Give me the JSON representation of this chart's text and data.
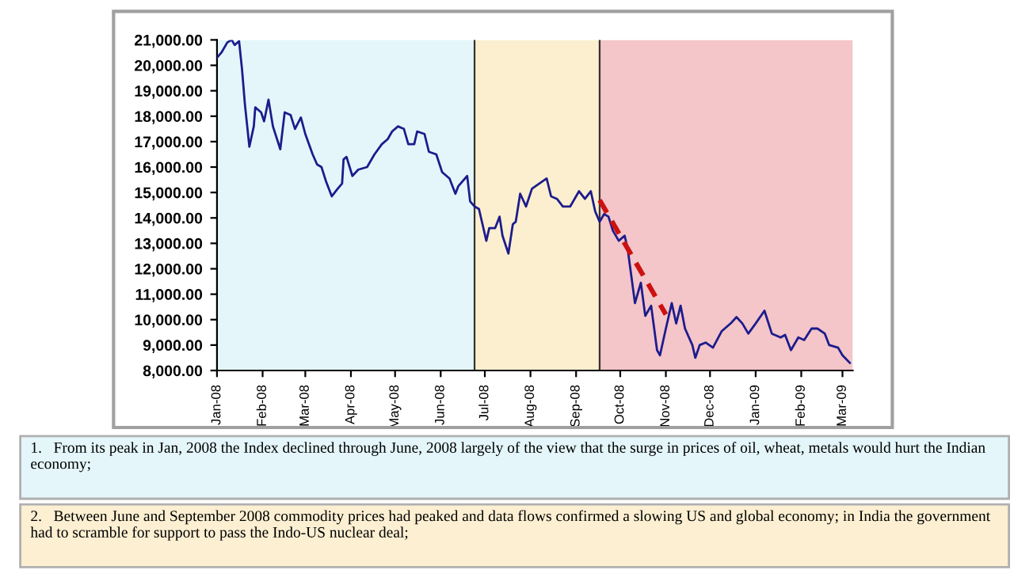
{
  "chart_data": {
    "type": "line",
    "x": [
      "2008-01-01",
      "2008-01-04",
      "2008-01-08",
      "2008-01-11",
      "2008-01-13",
      "2008-01-16",
      "2008-01-18",
      "2008-01-20",
      "2008-01-23",
      "2008-01-26",
      "2008-01-27",
      "2008-01-31",
      "2008-02-02",
      "2008-02-05",
      "2008-02-08",
      "2008-02-13",
      "2008-02-16",
      "2008-02-20",
      "2008-02-23",
      "2008-02-27",
      "2008-03-01",
      "2008-03-06",
      "2008-03-09",
      "2008-03-12",
      "2008-03-15",
      "2008-03-19",
      "2008-03-23",
      "2008-03-26",
      "2008-03-27",
      "2008-03-29",
      "2008-04-02",
      "2008-04-06",
      "2008-04-12",
      "2008-04-17",
      "2008-04-22",
      "2008-04-26",
      "2008-04-29",
      "2008-05-03",
      "2008-05-07",
      "2008-05-10",
      "2008-05-14",
      "2008-05-16",
      "2008-05-21",
      "2008-05-24",
      "2008-05-29",
      "2008-06-02",
      "2008-06-07",
      "2008-06-11",
      "2008-06-13",
      "2008-06-19",
      "2008-06-21",
      "2008-06-24",
      "2008-06-27",
      "2008-07-02",
      "2008-07-04",
      "2008-07-08",
      "2008-07-11",
      "2008-07-13",
      "2008-07-17",
      "2008-07-20",
      "2008-07-22",
      "2008-07-25",
      "2008-07-29",
      "2008-08-02",
      "2008-08-07",
      "2008-08-12",
      "2008-08-15",
      "2008-08-19",
      "2008-08-23",
      "2008-08-28",
      "2008-09-03",
      "2008-09-07",
      "2008-09-11",
      "2008-09-14",
      "2008-09-17",
      "2008-09-20",
      "2008-09-23",
      "2008-09-26",
      "2008-09-30",
      "2008-10-04",
      "2008-10-06",
      "2008-10-11",
      "2008-10-15",
      "2008-10-18",
      "2008-10-22",
      "2008-10-26",
      "2008-10-28",
      "2008-11-01",
      "2008-11-05",
      "2008-11-08",
      "2008-11-11",
      "2008-11-14",
      "2008-11-19",
      "2008-11-21",
      "2008-11-24",
      "2008-11-28",
      "2008-12-03",
      "2008-12-09",
      "2008-12-15",
      "2008-12-19",
      "2008-12-23",
      "2008-12-27",
      "2009-01-01",
      "2009-01-07",
      "2009-01-12",
      "2009-01-18",
      "2009-01-21",
      "2009-01-25",
      "2009-01-30",
      "2009-02-03",
      "2009-02-08",
      "2009-02-12",
      "2009-02-17",
      "2009-02-20",
      "2009-02-26",
      "2009-03-01",
      "2009-03-06"
    ],
    "series": [
      {
        "color": "#1c1c8c",
        "values": [
          20300,
          20500,
          20900,
          21000,
          20800,
          20950,
          19850,
          18450,
          16800,
          17600,
          18350,
          18150,
          17800,
          18650,
          17600,
          16700,
          18150,
          18050,
          17500,
          17950,
          17300,
          16500,
          16100,
          16000,
          15450,
          14850,
          15150,
          15350,
          16300,
          16400,
          15650,
          15900,
          16000,
          16500,
          16900,
          17100,
          17400,
          17600,
          17500,
          16900,
          16900,
          17400,
          17300,
          16600,
          16500,
          15800,
          15550,
          14950,
          15250,
          15650,
          14650,
          14450,
          14350,
          13100,
          13600,
          13600,
          14050,
          13300,
          12600,
          13750,
          13850,
          14950,
          14450,
          15150,
          15350,
          15550,
          14850,
          14750,
          14450,
          14450,
          15050,
          14750,
          15050,
          14250,
          13850,
          14150,
          14050,
          13500,
          13100,
          13300,
          12800,
          10650,
          11450,
          10150,
          10550,
          8800,
          8600,
          9650,
          10650,
          9850,
          10550,
          9650,
          9000,
          8500,
          9000,
          9100,
          8900,
          9550,
          9850,
          10100,
          9850,
          9450,
          9850,
          10350,
          9450,
          9300,
          9400,
          8800,
          9300,
          9200,
          9650,
          9650,
          9450,
          9000,
          8900,
          8600,
          8300
        ]
      },
      {
        "type": "line",
        "x": [
          "2008-09-17",
          "2008-11-01"
        ],
        "values": [
          14700,
          10200
        ],
        "color": "#cc1111",
        "line_style": "dashed"
      }
    ],
    "xlim": [
      "2008-01-01",
      "2009-03-08"
    ],
    "xticks": [
      {
        "value": "2008-01-01",
        "label": "Jan-08"
      },
      {
        "value": "2008-02-01",
        "label": "Feb-08"
      },
      {
        "value": "2008-03-01",
        "label": "Mar-08"
      },
      {
        "value": "2008-04-01",
        "label": "Apr-08"
      },
      {
        "value": "2008-05-01",
        "label": "May-08"
      },
      {
        "value": "2008-06-01",
        "label": "Jun-08"
      },
      {
        "value": "2008-07-01",
        "label": "Jul-08"
      },
      {
        "value": "2008-08-01",
        "label": "Aug-08"
      },
      {
        "value": "2008-09-01",
        "label": "Sep-08"
      },
      {
        "value": "2008-10-01",
        "label": "Oct-08"
      },
      {
        "value": "2008-11-01",
        "label": "Nov-08"
      },
      {
        "value": "2008-12-01",
        "label": "Dec-08"
      },
      {
        "value": "2009-01-01",
        "label": "Jan-09"
      },
      {
        "value": "2009-02-01",
        "label": "Feb-09"
      },
      {
        "value": "2009-03-01",
        "label": "Mar-09"
      }
    ],
    "ylim": [
      8000,
      21000
    ],
    "yticks": [
      {
        "value": 8000,
        "label": "8,000.00"
      },
      {
        "value": 9000,
        "label": "9,000.00"
      },
      {
        "value": 10000,
        "label": "10,000.00"
      },
      {
        "value": 11000,
        "label": "11,000.00"
      },
      {
        "value": 12000,
        "label": "12,000.00"
      },
      {
        "value": 13000,
        "label": "13,000.00"
      },
      {
        "value": 14000,
        "label": "14,000.00"
      },
      {
        "value": 15000,
        "label": "15,000.00"
      },
      {
        "value": 16000,
        "label": "16,000.00"
      },
      {
        "value": 17000,
        "label": "17,000.00"
      },
      {
        "value": 18000,
        "label": "18,000.00"
      },
      {
        "value": 19000,
        "label": "19,000.00"
      },
      {
        "value": 20000,
        "label": "20,000.00"
      },
      {
        "value": 21000,
        "label": "21,000.00"
      }
    ],
    "bands": [
      {
        "axis": "x",
        "from": "2008-01-01",
        "to": "2008-06-24",
        "color": "#e4f6fa"
      },
      {
        "axis": "x",
        "from": "2008-06-24",
        "to": "2008-09-17",
        "color": "#fbefcf"
      },
      {
        "axis": "x",
        "from": "2008-09-17",
        "to": "2009-03-08",
        "color": "#f4c5c9"
      }
    ],
    "ref_lines": [
      {
        "axis": "x",
        "value": "2008-06-24",
        "color": "#333333"
      },
      {
        "axis": "x",
        "value": "2008-09-17",
        "color": "#333333"
      }
    ],
    "grid": false,
    "legend": false,
    "marker": "none",
    "annotations": [
      "1.   From its peak in Jan, 2008 the Index declined through June, 2008 largely of the view that the surge in prices of oil, wheat, metals would hurt the Indian economy;",
      "2.   Between June and September 2008 commodity prices had peaked and data flows confirmed a slowing US and global economy; in India the government had to scramble for support to pass the Indo-US nuclear deal;"
    ]
  }
}
